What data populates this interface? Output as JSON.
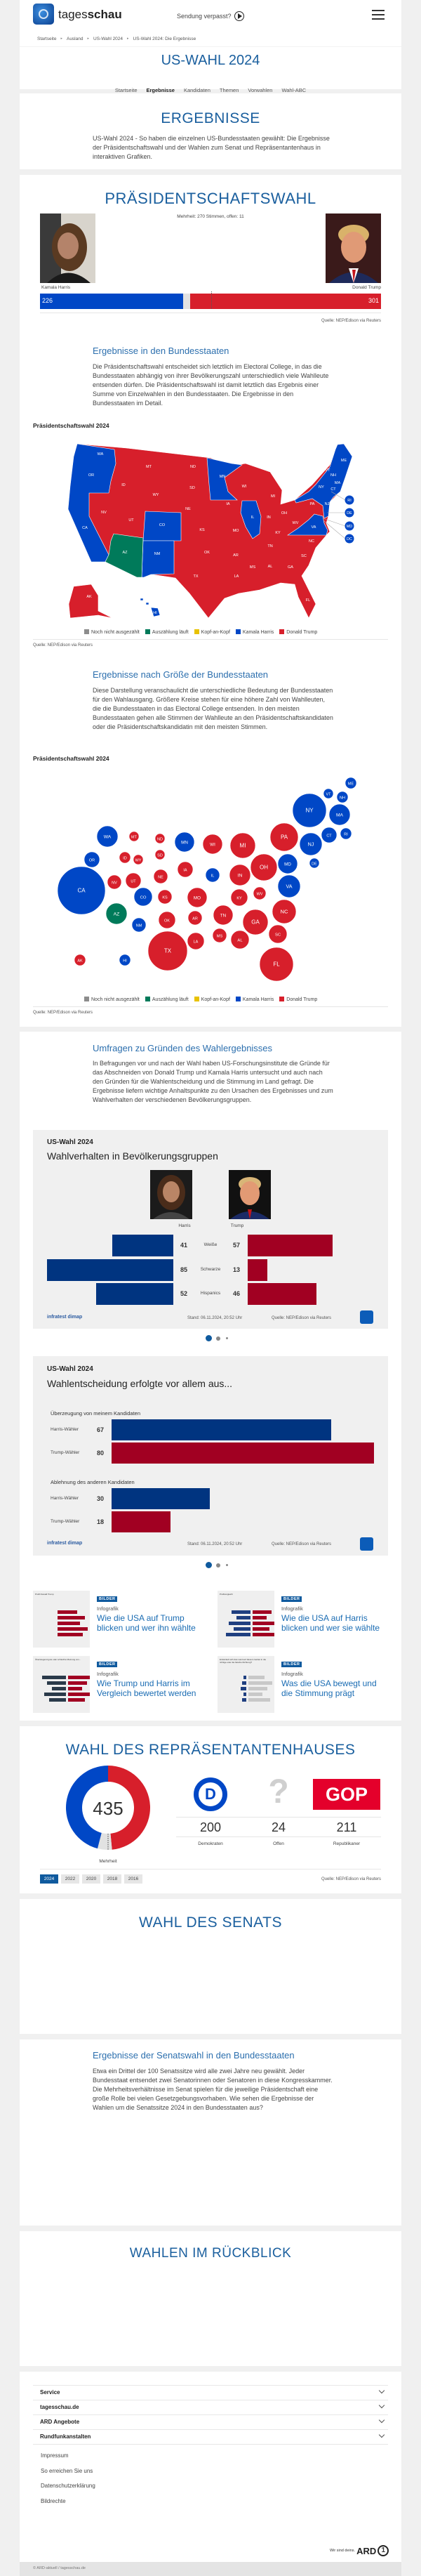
{
  "header": {
    "logo_light": "tages",
    "logo_bold": "schau",
    "sendung_label": "Sendung verpasst?",
    "breadcrumb": [
      "Startseite",
      "Ausland",
      "US-Wahl 2024",
      "US-Wahl 2024: Die Ergebnisse"
    ]
  },
  "nav": {
    "title": "US-WAHL 2024",
    "tabs": [
      "Startseite",
      "Ergebnisse",
      "Kandidaten",
      "Themen",
      "Vorwahlen",
      "Wahl-ABC"
    ],
    "active_tab": "Ergebnisse"
  },
  "intro": {
    "title": "ERGEBNISSE",
    "text": "US-Wahl 2024 - So haben die einzelnen US-Bundesstaaten gewählt: Die Ergebnisse der Präsidentschaftswahl und der Wahlen zum Senat und Repräsentantenhaus in interaktiven Grafiken."
  },
  "colors": {
    "harris": "#0047c6",
    "trump": "#d71f2b",
    "counting": "#007a5a",
    "tossup": "#e8c200",
    "not_counted": "#8c8c8c",
    "survey_harris": "#003480",
    "survey_trump": "#a10022",
    "brand": "#0f5a9e"
  },
  "president": {
    "title": "PRÄSIDENTSCHAFTSWAHL",
    "majority_label": "Mehrheit: 270 Stimmen, offen: 11",
    "harris": {
      "name": "Kamala Harris",
      "votes": 226
    },
    "trump": {
      "name": "Donald Trump",
      "votes": 301
    },
    "total_votes": 538,
    "majority": 270,
    "source": "Quelle: NEP/Edison via Reuters"
  },
  "legend": [
    "Noch nicht ausgezählt",
    "Auszählung läuft",
    "Kopf-an-Kopf",
    "Kamala Harris",
    "Donald Trump"
  ],
  "states_map": {
    "heading": "Ergebnisse in den Bundesstaaten",
    "text": "Die Präsidentschaftswahl entscheidet sich letztlich im Electoral College, in das die Bundesstaaten abhängig von ihrer Bevölkerungszahl unterschiedlich viele Wahlleute entsenden dürfen. Die Präsidentschaftswahl ist damit letztlich das Ergebnis einer Summe von Einzelwahlen in den Bundesstaaten. Die Ergebnisse in den Bundesstaaten im Detail.",
    "chart_title": "Präsidentschaftswahl 2024",
    "source": "Quelle: NEP/Edison via Reuters"
  },
  "states": {
    "WA": "harris",
    "OR": "harris",
    "CA": "harris",
    "NV": "trump",
    "ID": "trump",
    "MT": "trump",
    "WY": "trump",
    "UT": "trump",
    "AZ": "counting",
    "CO": "harris",
    "NM": "harris",
    "ND": "trump",
    "SD": "trump",
    "NE": "trump",
    "KS": "trump",
    "OK": "trump",
    "TX": "trump",
    "MN": "harris",
    "IA": "trump",
    "MO": "trump",
    "AR": "trump",
    "LA": "trump",
    "WI": "trump",
    "IL": "harris",
    "MI": "trump",
    "IN": "trump",
    "OH": "trump",
    "KY": "trump",
    "TN": "trump",
    "MS": "trump",
    "AL": "trump",
    "GA": "trump",
    "FL": "trump",
    "SC": "trump",
    "NC": "trump",
    "VA": "harris",
    "WV": "trump",
    "PA": "trump",
    "NY": "harris",
    "VT": "harris",
    "NH": "harris",
    "ME": "harris",
    "MA": "harris",
    "CT": "harris",
    "RI": "harris",
    "NJ": "harris",
    "DE": "harris",
    "MD": "harris",
    "DC": "harris",
    "AK": "trump",
    "HI": "harris"
  },
  "states_size": {
    "heading": "Ergebnisse nach Größe der Bundesstaaten",
    "text": "Diese Darstellung veranschaulicht die unterschiedliche Bedeutung der Bundesstaaten für den Wahlausgang. Größere Kreise stehen für eine höhere Zahl von Wahlleuten, die die Bundesstaaten in das Electoral College entsenden. In den meisten Bundesstaaten gehen alle Stimmen der Wahlleute an den Präsidentschaftskandidaten oder die Präsidentschaftskandidatin mit den meisten Stimmen.",
    "chart_title": "Präsidentschaftswahl 2024",
    "source": "Quelle: NEP/Edison via Reuters"
  },
  "surveys": {
    "heading": "Umfragen zu Gründen des Wahlergebnisses",
    "text": "In Befragungen vor und nach der Wahl haben US-Forschungsinstitute die Gründe für das Abschneiden von Donald Trump und Kamala Harris untersucht und auch nach den Gründen für die Wahlentscheidung und die Stimmung im Land gefragt. Die Ergebnisse liefern wichtige Anhaltspunkte zu den Ursachen des Ergebnisses und zum Wahlverhalten der verschiedenen Bevölkerungsgruppen.",
    "groups_chart": {
      "kicker": "US-Wahl 2024",
      "title": "Wahlverhalten in Bevölkerungsgruppen",
      "harris_label": "Harris",
      "trump_label": "Trump",
      "rows": [
        {
          "label": "Weiße",
          "harris": 41,
          "trump": 57
        },
        {
          "label": "Schwarze",
          "harris": 85,
          "trump": 13
        },
        {
          "label": "Hispanics",
          "harris": 52,
          "trump": 46
        }
      ],
      "brand": "infratest dimap",
      "stand": "Stand:  06.11.2024, 20:52 Uhr",
      "source": "Quelle: NEP/Edison via Reuters"
    },
    "decision_chart": {
      "kicker": "US-Wahl 2024",
      "title": "Wahlentscheidung erfolgte vor allem aus...",
      "groups": [
        {
          "label": "Überzeugung von meinem Kandidaten",
          "rows": [
            {
              "label": "Harris-Wähler",
              "value": 67,
              "party": "harris"
            },
            {
              "label": "Trump-Wähler",
              "value": 80,
              "party": "trump"
            }
          ]
        },
        {
          "label": "Ablehnung des anderen Kandidaten",
          "rows": [
            {
              "label": "Harris-Wähler",
              "value": 30,
              "party": "harris"
            },
            {
              "label": "Trump-Wähler",
              "value": 18,
              "party": "trump"
            }
          ]
        }
      ],
      "brand": "infratest dimap",
      "stand": "Stand:  06.11.2024, 20:52 Uhr",
      "source": "Quelle: NEP/Edison via Reuters"
    },
    "carousel": {
      "pages": 3,
      "active": 1
    },
    "teasers": [
      {
        "badge": "BILDER",
        "kicker": "Infografik",
        "title": "Wie die USA auf Trump blicken und wer ihn wählte",
        "thumb_title": "Profil Donald Trump"
      },
      {
        "badge": "BILDER",
        "kicker": "Infografik",
        "title": "Wie die USA auf Harris blicken und wer sie wählte",
        "thumb_title": "Profilvergleich"
      },
      {
        "badge": "BILDER",
        "kicker": "Infografik",
        "title": "Wie Trump und Harris im Vergleich bewertet werden",
        "thumb_title": "Überwiegend gute oder schlechte Meinung von..."
      },
      {
        "badge": "BILDER",
        "kicker": "Infografik",
        "title": "Was die USA bewegt und die Stimmung prägt",
        "thumb_title": "Entwickelt sich das Land auf diesem Gebiet in die richtige oder die falsche Richtung?"
      }
    ]
  },
  "house": {
    "title": "WAHL DES REPRÄSENTANTENHAUSES",
    "total": 435,
    "majority_label": "Mehrheit",
    "parties": [
      {
        "key": "dem",
        "label": "Demokraten",
        "seats": 200,
        "logo": "D"
      },
      {
        "key": "open",
        "label": "Offen",
        "seats": 24,
        "logo": "?"
      },
      {
        "key": "rep",
        "label": "Republikaner",
        "seats": 211,
        "logo": "GOP"
      }
    ],
    "years": [
      "2024",
      "2022",
      "2020",
      "2018",
      "2016"
    ],
    "active_year": "2024",
    "source": "Quelle: NEP/Edison via Reuters"
  },
  "senate": {
    "title": "WAHL DES SENATS",
    "heading": "Ergebnisse der Senatswahl in den Bundesstaaten",
    "text": "Etwa ein Drittel der 100 Senatssitze wird alle zwei Jahre neu gewählt. Jeder Bundesstaat entsendet zwei Senatorinnen oder Senatoren in diese Kongresskammer. Die Mehrheitsverhältnisse im Senat spielen für die jeweilige Präsidentschaft eine große Rolle bei vielen Gesetzgebungsvorhaben. Wie sehen die Ergebnisse der Wahlen um die Senatssitze 2024 in den Bundesstaaten aus?"
  },
  "review": {
    "title": "WAHLEN IM RÜCKBLICK"
  },
  "footer": {
    "sections": [
      "Service",
      "tagesschau.de",
      "ARD Angebote",
      "Rundfunkanstalten"
    ],
    "links": [
      "Impressum",
      "So erreichen Sie uns",
      "Datenschutzerklärung",
      "Bildrechte"
    ],
    "ard_slogan": "Wir sind deins.",
    "ard_logo": "ARD",
    "copyright": "© ARD-aktuell / tagesschau.de"
  }
}
